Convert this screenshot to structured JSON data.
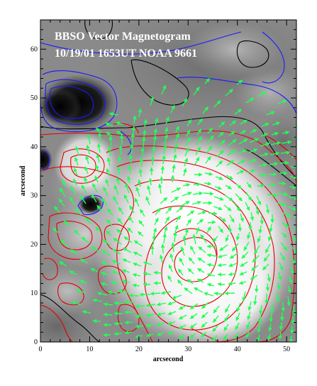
{
  "figure": {
    "title_line1": "BBSO Vector Magnetogram",
    "title_line2": "10/19/01 1653UT NOAA 9661",
    "x_axis_label": "arcsecond",
    "y_axis_label": "arcsecond",
    "x_ticks": [
      "0",
      "10",
      "20",
      "30",
      "40",
      "50"
    ],
    "y_ticks": [
      "0",
      "10",
      "20",
      "30",
      "40",
      "50",
      "60"
    ],
    "x_range": [
      0,
      52
    ],
    "y_range": [
      0,
      66
    ],
    "colors": {
      "positive_contour": "#e00000",
      "negative_contour": "#1a1aff",
      "neutral_line": "#000000",
      "transverse_field_arrow": "#22ff55"
    },
    "icons": {
      "arrows": "transverse-field-arrow"
    }
  }
}
